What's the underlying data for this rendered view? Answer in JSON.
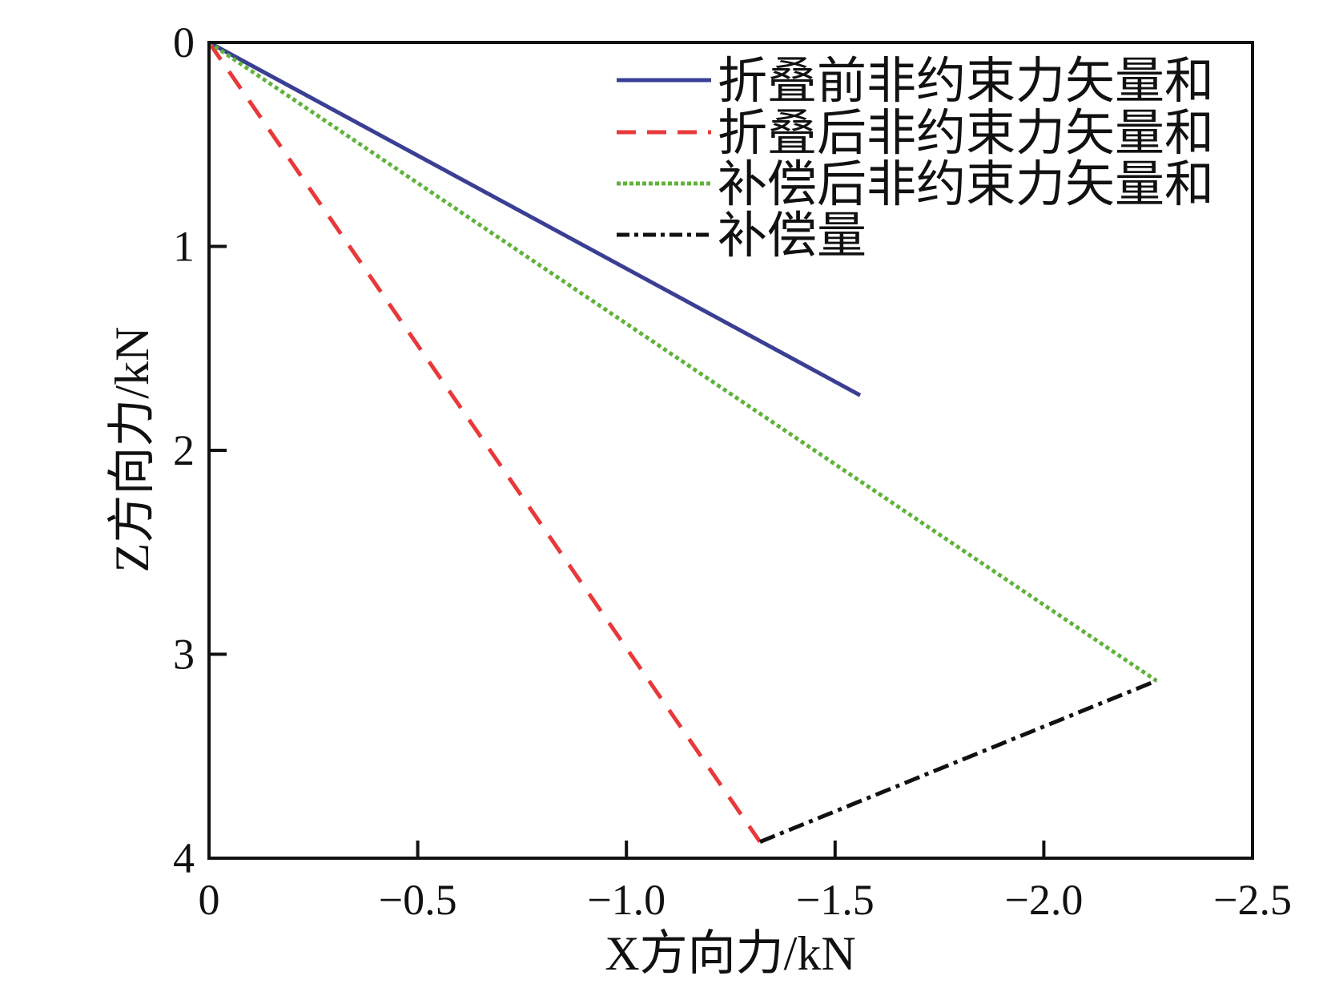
{
  "chart_data": {
    "type": "line",
    "title": "",
    "xlabel": "X方向力/kN",
    "ylabel": "Z方向力/kN",
    "xlim": [
      0,
      -2.5
    ],
    "ylim": [
      0,
      4
    ],
    "y_inverted": true,
    "grid": false,
    "legend_position": "top-right",
    "xticks": [
      "0",
      "−0.5",
      "−1.0",
      "−1.5",
      "−2.0",
      "−2.5"
    ],
    "xtick_values": [
      0,
      -0.5,
      -1.0,
      -1.5,
      -2.0,
      -2.5
    ],
    "yticks": [
      "0",
      "1",
      "2",
      "3",
      "4"
    ],
    "ytick_values": [
      0,
      1,
      2,
      3,
      4
    ],
    "series": [
      {
        "name": "折叠前非约束力矢量和",
        "color": "#3a3f94",
        "style": "solid",
        "x": [
          0,
          -1.56
        ],
        "y": [
          0,
          1.73
        ]
      },
      {
        "name": "折叠后非约束力矢量和",
        "color": "#e8393a",
        "style": "dashed",
        "x": [
          0,
          -1.32
        ],
        "y": [
          0,
          3.92
        ]
      },
      {
        "name": "补偿后非约束力矢量和",
        "color": "#5fb33a",
        "style": "dotted",
        "x": [
          0,
          -2.27
        ],
        "y": [
          0,
          3.13
        ]
      },
      {
        "name": "补偿量",
        "color": "#111111",
        "style": "dashdot",
        "x": [
          -1.32,
          -2.27
        ],
        "y": [
          3.92,
          3.13
        ]
      }
    ]
  }
}
